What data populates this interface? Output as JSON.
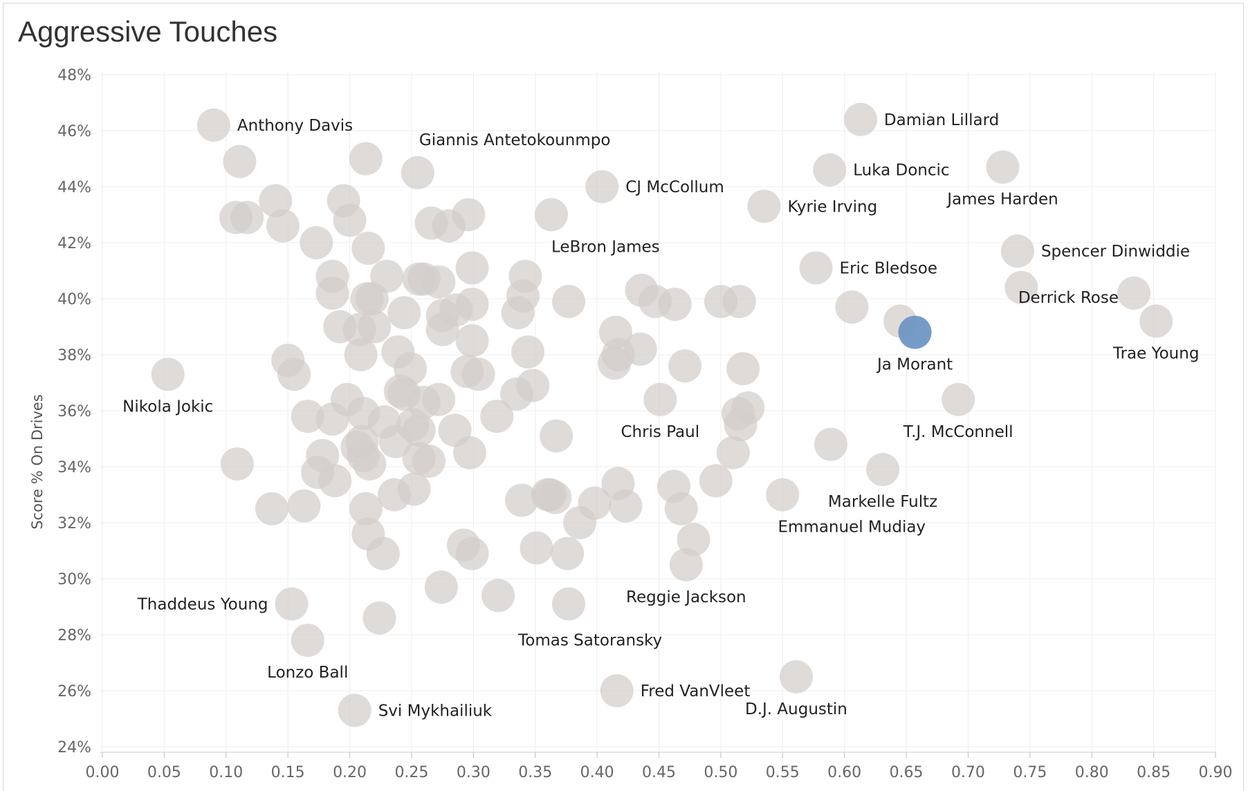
{
  "chart_data": {
    "type": "scatter",
    "title": "Aggressive Touches",
    "xlabel": "",
    "ylabel": "Score % On Drives",
    "xlim": [
      0.0,
      0.9
    ],
    "ylim": [
      24,
      48
    ],
    "xticks": [
      "0.00",
      "0.05",
      "0.10",
      "0.15",
      "0.20",
      "0.25",
      "0.30",
      "0.35",
      "0.40",
      "0.45",
      "0.50",
      "0.55",
      "0.60",
      "0.65",
      "0.70",
      "0.75",
      "0.80",
      "0.85",
      "0.90"
    ],
    "yticks": [
      "24%",
      "26%",
      "28%",
      "30%",
      "32%",
      "34%",
      "36%",
      "38%",
      "40%",
      "42%",
      "44%",
      "46%",
      "48%"
    ],
    "grid": true,
    "colors": {
      "default": "#d3cdca",
      "highlight": "#6f96c4"
    },
    "labeled_points": [
      {
        "name": "Anthony Davis",
        "x": 0.09,
        "y": 46.2
      },
      {
        "name": "Giannis Antetokounmpo",
        "x": 0.255,
        "y": 44.5
      },
      {
        "name": "CJ McCollum",
        "x": 0.404,
        "y": 44.0
      },
      {
        "name": "Damian Lillard",
        "x": 0.613,
        "y": 46.4
      },
      {
        "name": "Luka Doncic",
        "x": 0.588,
        "y": 44.6
      },
      {
        "name": "Kyrie Irving",
        "x": 0.535,
        "y": 43.3
      },
      {
        "name": "James Harden",
        "x": 0.728,
        "y": 44.7
      },
      {
        "name": "LeBron James",
        "x": 0.363,
        "y": 43.0
      },
      {
        "name": "Eric Bledsoe",
        "x": 0.577,
        "y": 41.1
      },
      {
        "name": "Spencer Dinwiddie",
        "x": 0.74,
        "y": 41.7
      },
      {
        "name": "Derrick Rose",
        "x": 0.834,
        "y": 40.2
      },
      {
        "name": "Trae Young",
        "x": 0.852,
        "y": 39.2
      },
      {
        "name": "Ja Morant",
        "x": 0.657,
        "y": 38.8,
        "highlight": true
      },
      {
        "name": "Nikola Jokic",
        "x": 0.053,
        "y": 37.3
      },
      {
        "name": "Chris Paul",
        "x": 0.451,
        "y": 36.4
      },
      {
        "name": "T.J. McConnell",
        "x": 0.692,
        "y": 36.4
      },
      {
        "name": "Markelle Fultz",
        "x": 0.631,
        "y": 33.9
      },
      {
        "name": "Emmanuel Mudiay",
        "x": 0.55,
        "y": 33.0
      },
      {
        "name": "Reggie Jackson",
        "x": 0.472,
        "y": 30.5
      },
      {
        "name": "Thaddeus Young",
        "x": 0.153,
        "y": 29.1
      },
      {
        "name": "Tomas Satoransky",
        "x": 0.362,
        "y": 33.0
      },
      {
        "name": "Lonzo Ball",
        "x": 0.166,
        "y": 27.8
      },
      {
        "name": "Fred VanVleet",
        "x": 0.416,
        "y": 26.0
      },
      {
        "name": "D.J. Augustin",
        "x": 0.561,
        "y": 26.5
      },
      {
        "name": "Svi Mykhailiuk",
        "x": 0.204,
        "y": 25.3
      }
    ],
    "other_points": [
      [
        0.111,
        44.9
      ],
      [
        0.213,
        45.0
      ],
      [
        0.108,
        42.9
      ],
      [
        0.117,
        42.9
      ],
      [
        0.14,
        43.5
      ],
      [
        0.146,
        42.6
      ],
      [
        0.195,
        43.5
      ],
      [
        0.2,
        42.8
      ],
      [
        0.173,
        42.0
      ],
      [
        0.215,
        41.8
      ],
      [
        0.266,
        42.7
      ],
      [
        0.28,
        42.6
      ],
      [
        0.296,
        43.0
      ],
      [
        0.186,
        40.8
      ],
      [
        0.23,
        40.8
      ],
      [
        0.256,
        40.7
      ],
      [
        0.26,
        40.7
      ],
      [
        0.272,
        40.6
      ],
      [
        0.299,
        41.1
      ],
      [
        0.342,
        40.8
      ],
      [
        0.186,
        40.2
      ],
      [
        0.214,
        40.0
      ],
      [
        0.218,
        40.0
      ],
      [
        0.244,
        39.5
      ],
      [
        0.275,
        39.4
      ],
      [
        0.286,
        39.6
      ],
      [
        0.299,
        39.8
      ],
      [
        0.34,
        40.1
      ],
      [
        0.336,
        39.5
      ],
      [
        0.377,
        39.9
      ],
      [
        0.436,
        40.3
      ],
      [
        0.447,
        39.9
      ],
      [
        0.463,
        39.8
      ],
      [
        0.5,
        39.9
      ],
      [
        0.515,
        39.9
      ],
      [
        0.606,
        39.7
      ],
      [
        0.645,
        39.2
      ],
      [
        0.743,
        40.4
      ],
      [
        0.192,
        39.0
      ],
      [
        0.208,
        38.9
      ],
      [
        0.22,
        39.0
      ],
      [
        0.275,
        38.9
      ],
      [
        0.209,
        38.0
      ],
      [
        0.239,
        38.1
      ],
      [
        0.299,
        38.5
      ],
      [
        0.344,
        38.1
      ],
      [
        0.415,
        38.8
      ],
      [
        0.417,
        38.0
      ],
      [
        0.435,
        38.2
      ],
      [
        0.414,
        37.7
      ],
      [
        0.15,
        37.8
      ],
      [
        0.155,
        37.3
      ],
      [
        0.249,
        37.5
      ],
      [
        0.295,
        37.4
      ],
      [
        0.304,
        37.3
      ],
      [
        0.348,
        36.9
      ],
      [
        0.335,
        36.6
      ],
      [
        0.471,
        37.6
      ],
      [
        0.518,
        37.5
      ],
      [
        0.198,
        36.4
      ],
      [
        0.244,
        36.6
      ],
      [
        0.241,
        36.7
      ],
      [
        0.26,
        36.3
      ],
      [
        0.272,
        36.4
      ],
      [
        0.166,
        35.8
      ],
      [
        0.186,
        35.7
      ],
      [
        0.211,
        35.9
      ],
      [
        0.228,
        35.6
      ],
      [
        0.251,
        35.5
      ],
      [
        0.256,
        35.3
      ],
      [
        0.285,
        35.3
      ],
      [
        0.319,
        35.8
      ],
      [
        0.522,
        36.1
      ],
      [
        0.516,
        35.5
      ],
      [
        0.514,
        35.9
      ],
      [
        0.367,
        35.1
      ],
      [
        0.206,
        34.7
      ],
      [
        0.21,
        34.9
      ],
      [
        0.237,
        34.9
      ],
      [
        0.256,
        34.3
      ],
      [
        0.264,
        34.2
      ],
      [
        0.297,
        34.5
      ],
      [
        0.589,
        34.8
      ],
      [
        0.109,
        34.1
      ],
      [
        0.178,
        34.4
      ],
      [
        0.174,
        33.8
      ],
      [
        0.188,
        33.5
      ],
      [
        0.211,
        34.4
      ],
      [
        0.216,
        34.1
      ],
      [
        0.252,
        33.2
      ],
      [
        0.236,
        33.0
      ],
      [
        0.51,
        34.5
      ],
      [
        0.496,
        33.5
      ],
      [
        0.137,
        32.5
      ],
      [
        0.163,
        32.6
      ],
      [
        0.213,
        32.5
      ],
      [
        0.339,
        32.8
      ],
      [
        0.36,
        33.0
      ],
      [
        0.366,
        32.9
      ],
      [
        0.398,
        32.7
      ],
      [
        0.417,
        33.4
      ],
      [
        0.423,
        32.6
      ],
      [
        0.462,
        33.3
      ],
      [
        0.468,
        32.5
      ],
      [
        0.386,
        32.0
      ],
      [
        0.215,
        31.6
      ],
      [
        0.227,
        30.9
      ],
      [
        0.292,
        31.2
      ],
      [
        0.299,
        30.9
      ],
      [
        0.351,
        31.1
      ],
      [
        0.376,
        30.9
      ],
      [
        0.478,
        31.4
      ],
      [
        0.274,
        29.7
      ],
      [
        0.32,
        29.4
      ],
      [
        0.224,
        28.6
      ],
      [
        0.377,
        29.1
      ]
    ]
  }
}
